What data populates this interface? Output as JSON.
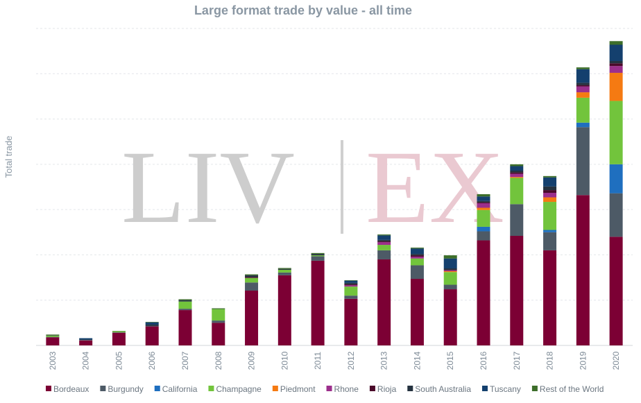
{
  "colors": {
    "Bordeaux": "#7c0034",
    "Burgundy": "#4d5a66",
    "California": "#1f6fbf",
    "Champagne": "#72c43c",
    "Piedmont": "#f57a12",
    "Rhone": "#9c2f8c",
    "Rioja": "#4a0a2a",
    "South Australia": "#24323f",
    "Tuscany": "#14406e",
    "Rest of the World": "#3d6e2a"
  },
  "watermark": {
    "left": "LIV",
    "right": "EX"
  },
  "chart_data": {
    "type": "bar",
    "stacked": true,
    "title": "Large format trade by value - all time",
    "xlabel": "",
    "ylabel": "Total trade",
    "ylim": [
      0,
      70
    ],
    "grid": true,
    "legend_position": "bottom",
    "categories": [
      "2003",
      "2004",
      "2005",
      "2006",
      "2007",
      "2008",
      "2009",
      "2010",
      "2011",
      "2012",
      "2013",
      "2014",
      "2015",
      "2016",
      "2017",
      "2018",
      "2019",
      "2020"
    ],
    "series": [
      {
        "name": "Bordeaux",
        "values": [
          1.8,
          1.1,
          2.8,
          4.2,
          7.8,
          5.0,
          12.1,
          15.5,
          18.7,
          10.3,
          19.0,
          14.7,
          12.4,
          23.2,
          24.2,
          21.0,
          33.2,
          24.0
        ]
      },
      {
        "name": "Burgundy",
        "values": [
          0.1,
          0.1,
          0.1,
          0.1,
          0.3,
          0.5,
          1.8,
          0.6,
          1.0,
          0.7,
          2.0,
          3.0,
          1.0,
          2.0,
          7.0,
          4.0,
          15.0,
          9.6
        ]
      },
      {
        "name": "California",
        "values": [
          0,
          0,
          0,
          0,
          0,
          0,
          0,
          0,
          0,
          0,
          0,
          0,
          0,
          1.0,
          0,
          0.5,
          1.0,
          6.4
        ]
      },
      {
        "name": "Champagne",
        "values": [
          0.3,
          0,
          0.2,
          0,
          1.6,
          2.5,
          1.0,
          0.6,
          0.2,
          2.0,
          1.2,
          1.5,
          2.8,
          3.7,
          5.8,
          6.2,
          5.5,
          14.0
        ]
      },
      {
        "name": "Piedmont",
        "values": [
          0,
          0,
          0,
          0,
          0,
          0,
          0,
          0,
          0,
          0,
          0,
          0,
          0.2,
          0.5,
          0.2,
          1.0,
          1.2,
          6.2
        ]
      },
      {
        "name": "Rhone",
        "values": [
          0,
          0,
          0,
          0,
          0,
          0,
          0,
          0,
          0,
          0.3,
          0.6,
          0.4,
          0.2,
          1.0,
          0.7,
          1.0,
          1.3,
          1.5
        ]
      },
      {
        "name": "Rioja",
        "values": [
          0,
          0,
          0,
          0,
          0,
          0,
          0.2,
          0,
          0,
          0.2,
          0.2,
          0.3,
          0.1,
          0.2,
          0.3,
          0.6,
          0.3,
          0.6
        ]
      },
      {
        "name": "South Australia",
        "values": [
          0.1,
          0.1,
          0,
          0.3,
          0.3,
          0,
          0.4,
          0.2,
          0.3,
          0.3,
          0.3,
          0.3,
          0.3,
          0.3,
          0.4,
          0.8,
          0.5,
          0.5
        ]
      },
      {
        "name": "Tuscany",
        "values": [
          0,
          0.3,
          0,
          0.5,
          0,
          0,
          0,
          0,
          0,
          0.5,
          1.0,
          1.2,
          2.2,
          1.0,
          1.0,
          2.0,
          3.0,
          3.6
        ]
      },
      {
        "name": "Rest of the World",
        "values": [
          0.1,
          0,
          0.1,
          0.1,
          0.2,
          0.2,
          0.2,
          0.2,
          0.2,
          0.1,
          0.2,
          0.2,
          0.7,
          0.5,
          0.4,
          0.3,
          0.4,
          0.8
        ]
      }
    ]
  }
}
